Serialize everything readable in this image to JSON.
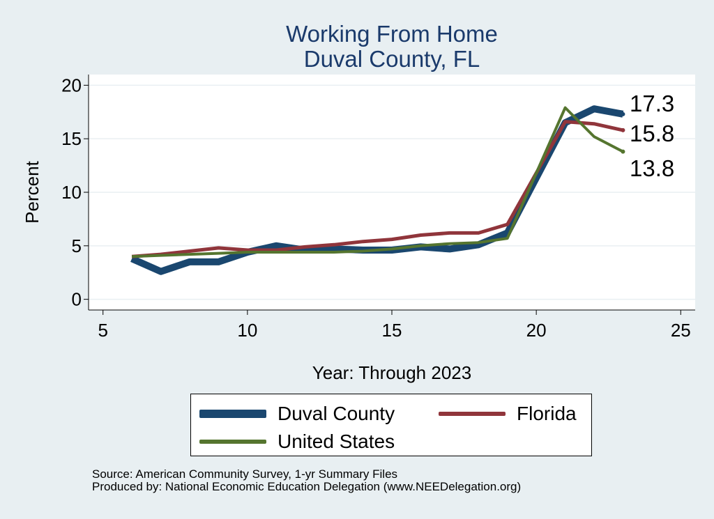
{
  "titles": {
    "line1": "Working From Home",
    "line2": "Duval County, FL"
  },
  "chart_data": {
    "type": "line",
    "xlabel": "Year: Through 2023",
    "ylabel": "Percent",
    "xlim": [
      4.5,
      25.5
    ],
    "ylim": [
      -1,
      21
    ],
    "xticks": [
      5,
      10,
      15,
      20,
      25
    ],
    "yticks": [
      0,
      5,
      10,
      15,
      20
    ],
    "grid": true,
    "x": [
      6,
      7,
      8,
      9,
      10,
      11,
      12,
      13,
      14,
      15,
      16,
      17,
      18,
      19,
      21,
      22,
      23
    ],
    "series": [
      {
        "name": "Duval County",
        "color": "#1a476f",
        "values": [
          3.8,
          2.6,
          3.5,
          3.5,
          4.4,
          5.0,
          4.6,
          4.7,
          4.6,
          4.6,
          4.9,
          4.7,
          5.1,
          6.2,
          16.5,
          17.8,
          17.3
        ]
      },
      {
        "name": "Florida",
        "color": "#90353b",
        "values": [
          4.0,
          4.2,
          4.5,
          4.8,
          4.6,
          4.6,
          4.9,
          5.1,
          5.4,
          5.6,
          6.0,
          6.2,
          6.2,
          7.0,
          16.6,
          16.4,
          15.8
        ]
      },
      {
        "name": "United States",
        "color": "#55752f",
        "values": [
          4.0,
          4.1,
          4.2,
          4.3,
          4.4,
          4.4,
          4.4,
          4.4,
          4.5,
          4.7,
          5.0,
          5.2,
          5.3,
          5.7,
          17.9,
          15.2,
          13.8
        ]
      }
    ],
    "end_labels": [
      "17.3",
      "15.8",
      "13.8"
    ],
    "legend_position": "bottom"
  },
  "legend": {
    "duval": "Duval County",
    "florida": "Florida",
    "us": "United States"
  },
  "source": {
    "line1": "Source: American Community Survey, 1-yr Summary Files",
    "line2": "Produced by: National Economic Education Delegation (www.NEEDelegation.org)"
  }
}
